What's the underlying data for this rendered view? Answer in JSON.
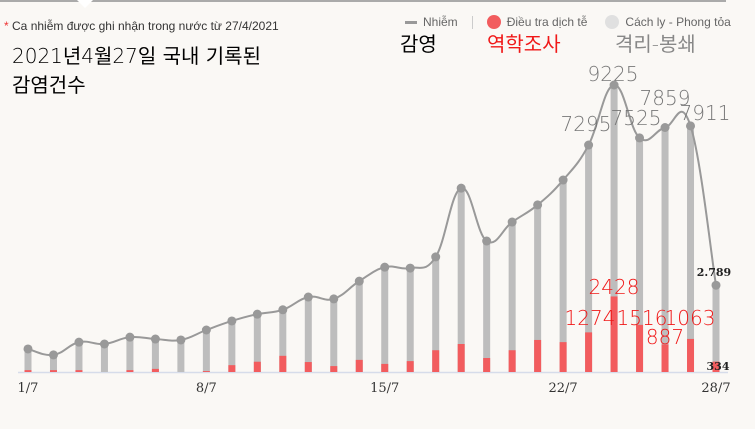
{
  "note": {
    "star": "*",
    "text": "Ca nhiễm được ghi nhận trong nước từ 27/4/2021"
  },
  "overlay": {
    "title_line1": "2021년4월27일 국내 기록된",
    "title_line2": "감염건수",
    "legend_infected": "감영",
    "legend_epi": "역학조사",
    "legend_quarantine": "격리-봉쇄"
  },
  "legend": {
    "infected": "Nhiễm",
    "epi": "Điều tra dịch tễ",
    "quarantine": "Cách ly - Phong tỏa"
  },
  "colors": {
    "infected": "#999999",
    "bar": "#bdbdbd",
    "epi": "#f25c5e",
    "quarantine": "#e0e0e0",
    "axis": "#d6dcea"
  },
  "chart_data": {
    "type": "bar",
    "categories": [
      "1/7",
      "2/7",
      "3/7",
      "4/7",
      "5/7",
      "6/7",
      "7/7",
      "8/7",
      "9/7",
      "10/7",
      "11/7",
      "12/7",
      "13/7",
      "14/7",
      "15/7",
      "16/7",
      "17/7",
      "18/7",
      "19/7",
      "20/7",
      "21/7",
      "22/7",
      "23/7",
      "24/7",
      "25/7",
      "26/7",
      "27/7",
      "28/7"
    ],
    "x_tick_labels": [
      "1/7",
      "8/7",
      "15/7",
      "22/7",
      "28/7"
    ],
    "series": [
      {
        "name": "Nhiễm",
        "type": "line+bar",
        "values": [
          740,
          550,
          960,
          900,
          1120,
          1060,
          1030,
          1350,
          1640,
          1860,
          2000,
          2410,
          2350,
          2920,
          3370,
          3340,
          3700,
          5910,
          4210,
          4820,
          5370,
          6170,
          7295,
          9225,
          7525,
          7859,
          7911,
          2789
        ]
      },
      {
        "name": "Điều tra dịch tễ",
        "type": "bar",
        "values": [
          60,
          60,
          60,
          0,
          60,
          100,
          0,
          30,
          220,
          330,
          520,
          320,
          190,
          390,
          260,
          350,
          700,
          900,
          450,
          700,
          1030,
          960,
          1274,
          2428,
          1516,
          887,
          1063,
          334
        ]
      }
    ],
    "data_labels": {
      "infected": [
        {
          "day": "23/7",
          "text": "7295"
        },
        {
          "day": "24/7",
          "text": "9225"
        },
        {
          "day": "25/7",
          "text": "7525"
        },
        {
          "day": "26/7",
          "text": "7859"
        },
        {
          "day": "27/7",
          "text": "7911"
        },
        {
          "day": "28/7",
          "text": "2.789"
        }
      ],
      "epi": [
        {
          "day": "23/7",
          "text": "1274"
        },
        {
          "day": "24/7",
          "text": "2428"
        },
        {
          "day": "25/7",
          "text": "1516"
        },
        {
          "day": "26/7",
          "text": "887"
        },
        {
          "day": "27/7",
          "text": "1063"
        },
        {
          "day": "28/7",
          "text": "334"
        }
      ]
    },
    "ylim": [
      0,
      9225
    ],
    "grid": false,
    "legend_position": "top-right"
  }
}
